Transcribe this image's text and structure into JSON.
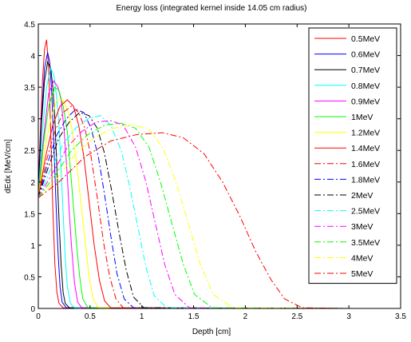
{
  "chart_data": {
    "type": "line",
    "title": "Energy loss (integrated kernel inside 14.05 cm radius)",
    "xlabel": "Depth [cm]",
    "ylabel": "dEdx [MeV/cm]",
    "xlim": [
      0,
      3.5
    ],
    "ylim": [
      0,
      4.5
    ],
    "xticks": [
      "0",
      "0.5",
      "1",
      "1.5",
      "2",
      "2.5",
      "3",
      "3.5"
    ],
    "yticks": [
      "0",
      "0.5",
      "1",
      "1.5",
      "2",
      "2.5",
      "3",
      "3.5",
      "4",
      "4.5"
    ],
    "grid": false,
    "legend_position": "top-right",
    "series": [
      {
        "name": "0.5MeV",
        "color": "#ff0000",
        "dash": "solid",
        "x": [
          0,
          0.02,
          0.04,
          0.06,
          0.08,
          0.1,
          0.12,
          0.14,
          0.16,
          0.18,
          0.2,
          0.24,
          3.0
        ],
        "y": [
          2.0,
          2.8,
          3.6,
          4.1,
          4.25,
          3.8,
          2.8,
          1.6,
          0.7,
          0.25,
          0.08,
          0.01,
          0
        ]
      },
      {
        "name": "0.6MeV",
        "color": "#0000ff",
        "dash": "solid",
        "x": [
          0,
          0.03,
          0.06,
          0.09,
          0.11,
          0.13,
          0.15,
          0.17,
          0.19,
          0.21,
          0.23,
          0.27,
          3.0
        ],
        "y": [
          1.9,
          3.0,
          3.8,
          4.05,
          3.9,
          3.4,
          2.6,
          1.7,
          0.9,
          0.35,
          0.1,
          0.01,
          0
        ]
      },
      {
        "name": "0.7MeV",
        "color": "#000000",
        "dash": "solid",
        "x": [
          0,
          0.03,
          0.06,
          0.09,
          0.12,
          0.14,
          0.16,
          0.18,
          0.2,
          0.22,
          0.24,
          0.26,
          0.3,
          3.0
        ],
        "y": [
          1.85,
          2.9,
          3.6,
          3.9,
          3.8,
          3.5,
          3.0,
          2.2,
          1.4,
          0.7,
          0.25,
          0.08,
          0.01,
          0
        ]
      },
      {
        "name": "0.8MeV",
        "color": "#00ffff",
        "dash": "solid",
        "x": [
          0,
          0.04,
          0.08,
          0.12,
          0.15,
          0.18,
          0.2,
          0.22,
          0.24,
          0.26,
          0.28,
          0.31,
          0.35,
          3.0
        ],
        "y": [
          1.8,
          2.8,
          3.5,
          3.8,
          3.7,
          3.3,
          2.9,
          2.2,
          1.5,
          0.8,
          0.35,
          0.08,
          0.01,
          0
        ]
      },
      {
        "name": "0.9MeV",
        "color": "#ff00ff",
        "dash": "solid",
        "x": [
          0,
          0.05,
          0.1,
          0.15,
          0.19,
          0.22,
          0.25,
          0.28,
          0.3,
          0.32,
          0.35,
          0.38,
          0.42,
          3.0
        ],
        "y": [
          1.8,
          2.7,
          3.4,
          3.6,
          3.5,
          3.3,
          2.8,
          2.1,
          1.5,
          1.0,
          0.4,
          0.1,
          0.01,
          0
        ]
      },
      {
        "name": "1MeV",
        "color": "#00ff00",
        "dash": "solid",
        "x": [
          0,
          0.05,
          0.1,
          0.16,
          0.2,
          0.24,
          0.28,
          0.31,
          0.34,
          0.37,
          0.4,
          0.43,
          0.48,
          3.0
        ],
        "y": [
          1.75,
          2.6,
          3.2,
          3.5,
          3.45,
          3.2,
          2.8,
          2.2,
          1.6,
          1.0,
          0.5,
          0.15,
          0.01,
          0
        ]
      },
      {
        "name": "1.2MeV",
        "color": "#ffff00",
        "dash": "solid",
        "x": [
          0,
          0.06,
          0.12,
          0.18,
          0.24,
          0.29,
          0.33,
          0.37,
          0.41,
          0.45,
          0.49,
          0.53,
          0.58,
          3.0
        ],
        "y": [
          1.75,
          2.5,
          3.0,
          3.3,
          3.3,
          3.1,
          2.8,
          2.3,
          1.7,
          1.1,
          0.5,
          0.15,
          0.01,
          0
        ]
      },
      {
        "name": "1.4MeV",
        "color": "#ff0000",
        "dash": "solid",
        "x": [
          0,
          0.07,
          0.14,
          0.21,
          0.28,
          0.34,
          0.39,
          0.44,
          0.49,
          0.54,
          0.59,
          0.64,
          0.7,
          3.0
        ],
        "y": [
          1.75,
          2.4,
          2.9,
          3.2,
          3.3,
          3.2,
          2.9,
          2.4,
          1.7,
          1.0,
          0.45,
          0.12,
          0.01,
          0
        ]
      },
      {
        "name": "1.6MeV",
        "color": "#ff0000",
        "dash": "dashdot",
        "x": [
          0,
          0.08,
          0.16,
          0.24,
          0.32,
          0.39,
          0.45,
          0.51,
          0.57,
          0.63,
          0.69,
          0.75,
          0.82,
          3.0
        ],
        "y": [
          1.75,
          2.35,
          2.8,
          3.1,
          3.2,
          3.1,
          2.85,
          2.4,
          1.75,
          1.05,
          0.5,
          0.15,
          0.01,
          0
        ]
      },
      {
        "name": "1.8MeV",
        "color": "#0000ff",
        "dash": "dashdot",
        "x": [
          0,
          0.09,
          0.18,
          0.27,
          0.36,
          0.44,
          0.51,
          0.58,
          0.64,
          0.7,
          0.76,
          0.83,
          0.92,
          3.0
        ],
        "y": [
          1.75,
          2.3,
          2.75,
          3.0,
          3.15,
          3.1,
          2.85,
          2.4,
          1.8,
          1.15,
          0.55,
          0.15,
          0.01,
          0
        ]
      },
      {
        "name": "2MeV",
        "color": "#000000",
        "dash": "dashdot",
        "x": [
          0,
          0.1,
          0.2,
          0.3,
          0.4,
          0.49,
          0.57,
          0.64,
          0.71,
          0.78,
          0.85,
          0.92,
          1.02,
          3.0
        ],
        "y": [
          1.75,
          2.25,
          2.7,
          2.95,
          3.1,
          3.05,
          2.85,
          2.45,
          1.85,
          1.2,
          0.6,
          0.18,
          0.01,
          0
        ]
      },
      {
        "name": "2.5MeV",
        "color": "#00ffff",
        "dash": "dashdot",
        "x": [
          0,
          0.12,
          0.24,
          0.36,
          0.48,
          0.6,
          0.7,
          0.8,
          0.88,
          0.96,
          1.04,
          1.12,
          1.24,
          3.0
        ],
        "y": [
          1.75,
          2.2,
          2.6,
          2.85,
          3.0,
          3.05,
          2.9,
          2.5,
          1.95,
          1.3,
          0.65,
          0.2,
          0.01,
          0
        ]
      },
      {
        "name": "3MeV",
        "color": "#ff00ff",
        "dash": "dashdot",
        "x": [
          0,
          0.14,
          0.28,
          0.42,
          0.56,
          0.7,
          0.82,
          0.94,
          1.04,
          1.13,
          1.22,
          1.32,
          1.46,
          3.0
        ],
        "y": [
          1.75,
          2.15,
          2.55,
          2.8,
          2.95,
          2.97,
          2.9,
          2.55,
          2.0,
          1.35,
          0.7,
          0.22,
          0.01,
          0
        ]
      },
      {
        "name": "3.5MeV",
        "color": "#00ff00",
        "dash": "dashdot",
        "x": [
          0,
          0.16,
          0.32,
          0.48,
          0.64,
          0.8,
          0.94,
          1.07,
          1.18,
          1.29,
          1.4,
          1.51,
          1.68,
          3.0
        ],
        "y": [
          1.75,
          2.1,
          2.5,
          2.75,
          2.9,
          2.93,
          2.85,
          2.55,
          2.0,
          1.35,
          0.7,
          0.22,
          0.01,
          0
        ]
      },
      {
        "name": "4MeV",
        "color": "#ffff00",
        "dash": "dashdot",
        "x": [
          0,
          0.18,
          0.36,
          0.54,
          0.72,
          0.9,
          1.06,
          1.2,
          1.32,
          1.44,
          1.56,
          1.69,
          1.88,
          3.0
        ],
        "y": [
          1.75,
          2.05,
          2.45,
          2.7,
          2.85,
          2.9,
          2.85,
          2.55,
          2.05,
          1.4,
          0.72,
          0.22,
          0.01,
          0
        ]
      },
      {
        "name": "5MeV",
        "color": "#ff0000",
        "dash": "dashdot",
        "x": [
          0,
          0.2,
          0.45,
          0.7,
          0.95,
          1.2,
          1.4,
          1.6,
          1.78,
          1.95,
          2.1,
          2.25,
          2.38,
          2.55,
          3.0
        ],
        "y": [
          1.75,
          2.0,
          2.4,
          2.65,
          2.75,
          2.78,
          2.7,
          2.45,
          2.0,
          1.45,
          0.9,
          0.45,
          0.15,
          0.01,
          0
        ]
      }
    ]
  }
}
